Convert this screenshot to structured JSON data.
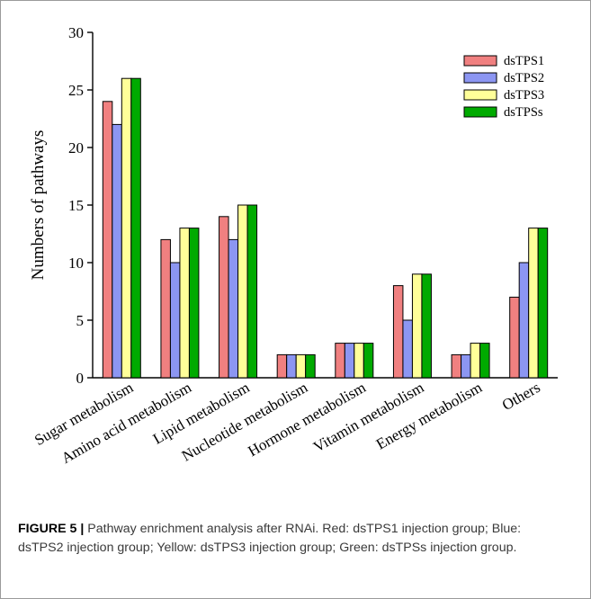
{
  "chart_data": {
    "type": "bar",
    "ylabel": "Numbers of pathways",
    "ylim": [
      0,
      30
    ],
    "yticks": [
      0,
      5,
      10,
      15,
      20,
      25,
      30
    ],
    "categories": [
      "Sugar metabolism",
      "Amino acid metabolism",
      "Lipid metabolism",
      "Nucleotide metabolism",
      "Hormone metabolism",
      "Vitamin metabolism",
      "Energy metabolism",
      "Others"
    ],
    "series": [
      {
        "name": "dsTPS1",
        "color": "#f08080",
        "values": [
          24,
          12,
          14,
          2,
          3,
          8,
          2,
          7
        ]
      },
      {
        "name": "dsTPS2",
        "color": "#8c96f2",
        "values": [
          22,
          10,
          12,
          2,
          3,
          5,
          2,
          10
        ]
      },
      {
        "name": "dsTPS3",
        "color": "#ffff99",
        "values": [
          26,
          13,
          15,
          2,
          3,
          9,
          3,
          13
        ]
      },
      {
        "name": "dsTPSs",
        "color": "#00aa00",
        "values": [
          26,
          13,
          15,
          2,
          3,
          9,
          3,
          13
        ]
      }
    ],
    "legend_position": "top-right",
    "grid": false
  },
  "caption": {
    "label": "FIGURE 5 |",
    "text": " Pathway enrichment analysis after RNAi. Red: dsTPS1 injection group; Blue: dsTPS2 injection group; Yellow: dsTPS3 injection group; Green: dsTPSs injection group."
  }
}
